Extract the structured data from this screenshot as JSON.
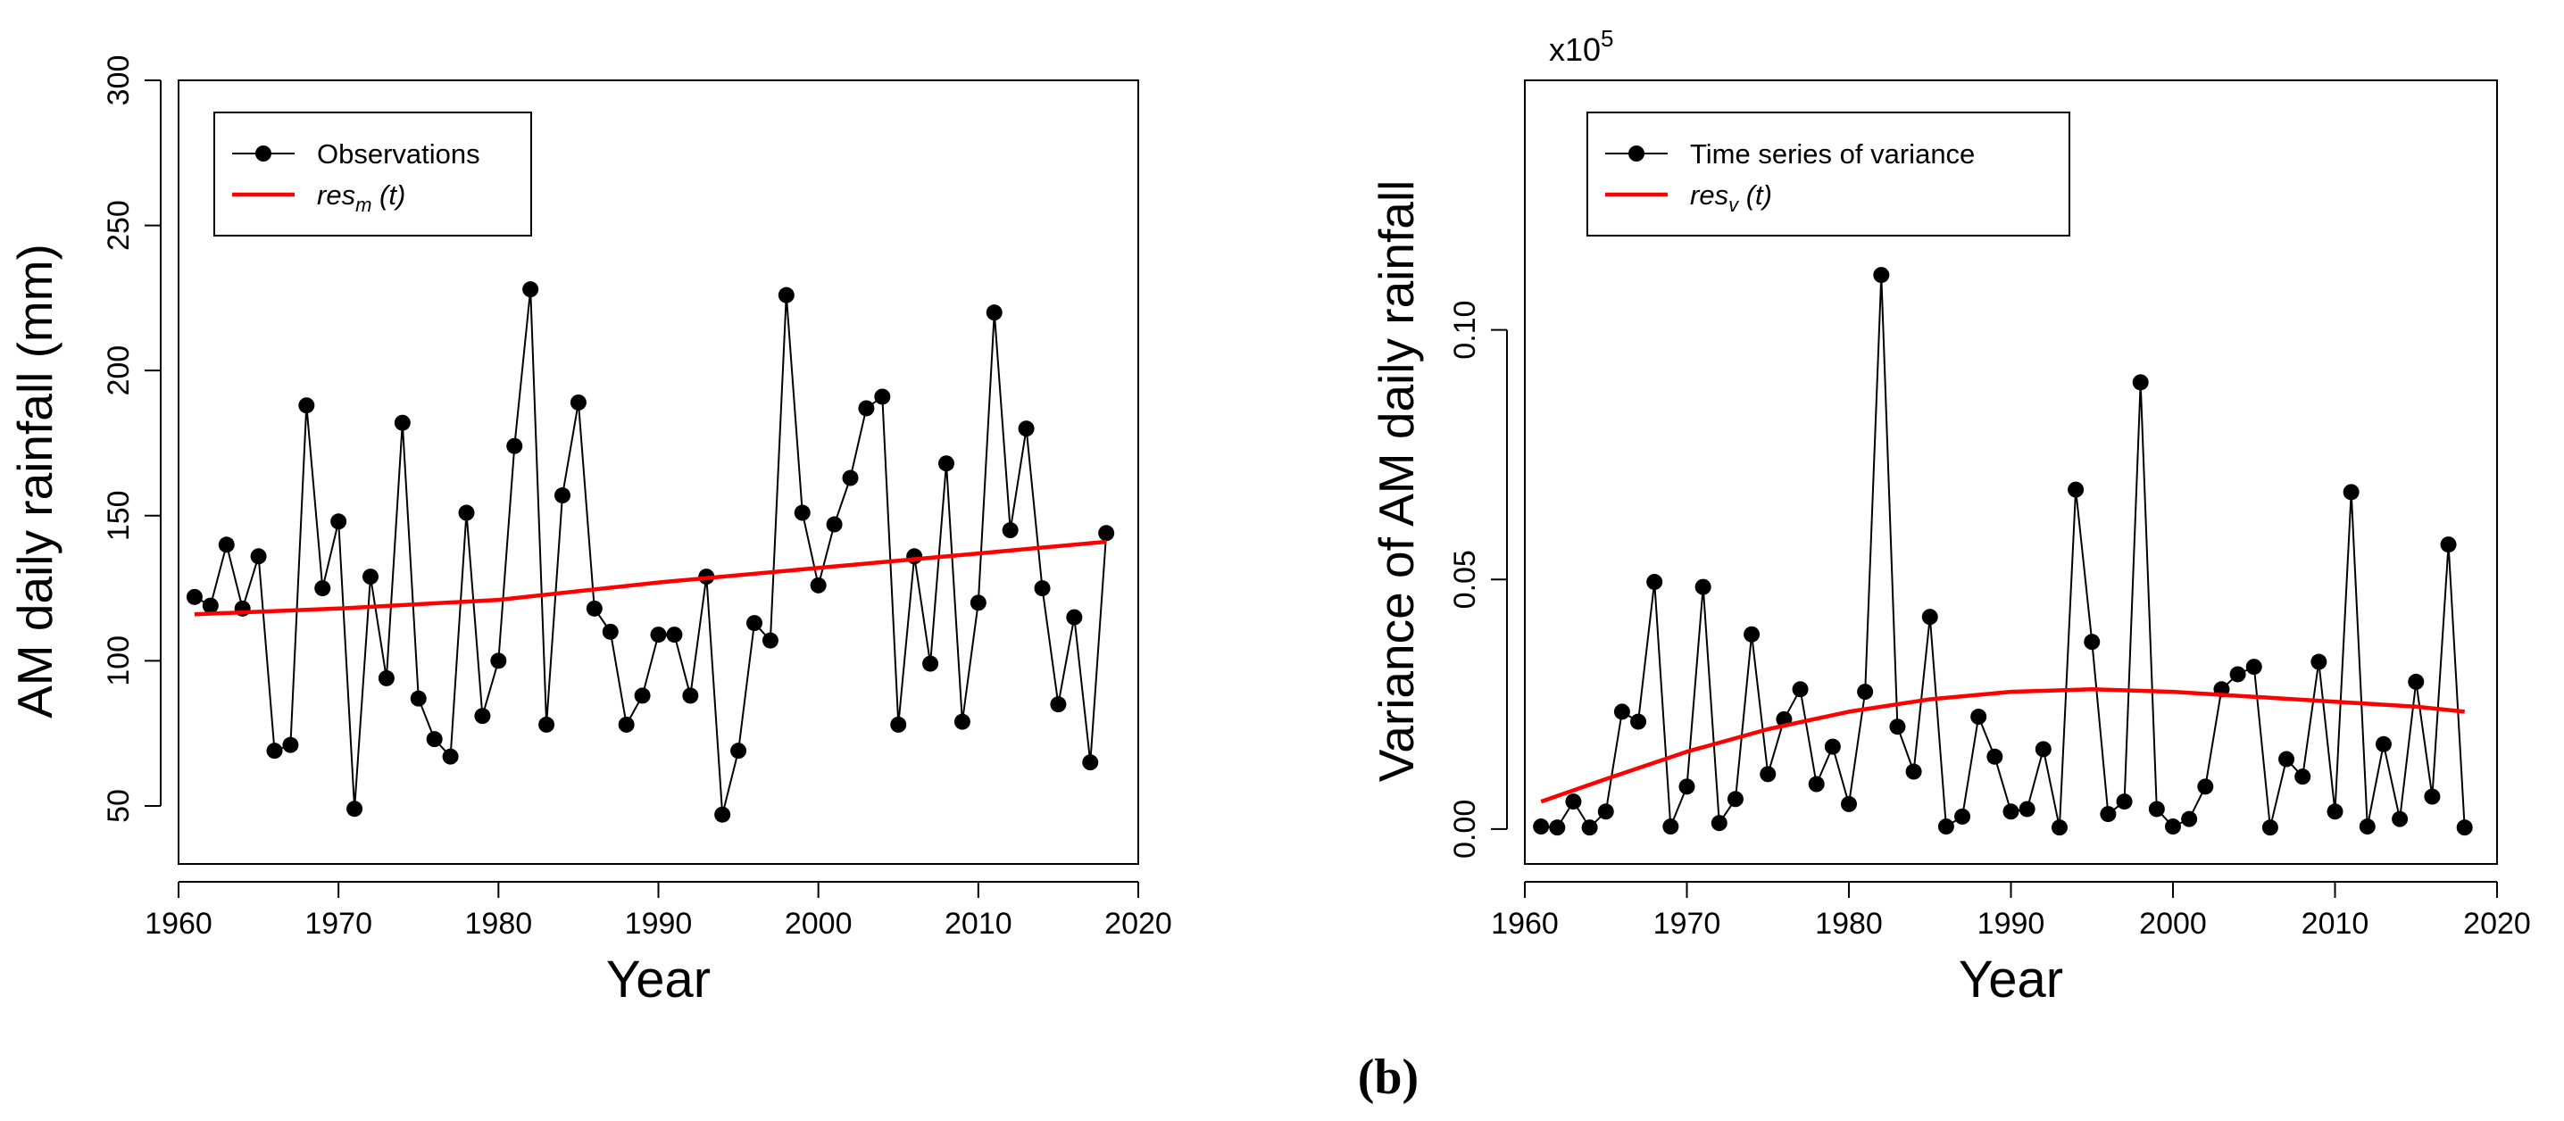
{
  "chart_data": [
    {
      "type": "line",
      "title": "",
      "xlabel": "Year",
      "ylabel": "AM daily rainfall (mm)",
      "xlim": [
        1960,
        2020
      ],
      "ylim": [
        30,
        300
      ],
      "xticks": [
        1960,
        1970,
        1980,
        1990,
        2000,
        2010,
        2020
      ],
      "yticks": [
        50,
        100,
        150,
        200,
        250,
        300
      ],
      "tick_labels_x": [
        "1960",
        "1970",
        "1980",
        "1990",
        "2000",
        "2010",
        "2020"
      ],
      "tick_labels_y": [
        "50",
        "100",
        "150",
        "200",
        "250",
        "300"
      ],
      "legend": {
        "position": "top-left",
        "entries": [
          {
            "label": "Observations",
            "style": "line-points",
            "color": "#000000"
          },
          {
            "label_base": "res",
            "label_sub": "m",
            "label_tail": " (t)",
            "style": "line",
            "color": "#ff0000"
          }
        ]
      },
      "series": [
        {
          "name": "Observations",
          "color": "#000000",
          "markers": true,
          "x": [
            1961,
            1962,
            1963,
            1964,
            1965,
            1966,
            1967,
            1968,
            1969,
            1970,
            1971,
            1972,
            1973,
            1974,
            1975,
            1976,
            1977,
            1978,
            1979,
            1980,
            1981,
            1982,
            1983,
            1984,
            1985,
            1986,
            1987,
            1988,
            1989,
            1990,
            1991,
            1992,
            1993,
            1994,
            1995,
            1996,
            1997,
            1998,
            1999,
            2000,
            2001,
            2002,
            2003,
            2004,
            2005,
            2006,
            2007,
            2008,
            2009,
            2010,
            2011,
            2012,
            2013,
            2014,
            2015,
            2016,
            2017,
            2018
          ],
          "y": [
            122,
            119,
            140,
            118,
            136,
            69,
            71,
            188,
            125,
            148,
            49,
            129,
            94,
            182,
            87,
            73,
            67,
            151,
            81,
            100,
            174,
            228,
            78,
            157,
            189,
            118,
            110,
            78,
            88,
            109,
            109,
            88,
            129,
            47,
            69,
            113,
            107,
            226,
            151,
            126,
            147,
            163,
            187,
            191,
            78,
            136,
            99,
            168,
            79,
            120,
            220,
            145,
            180,
            125,
            85,
            115,
            65,
            144
          ]
        },
        {
          "name": "res_m (t)",
          "color": "#ff0000",
          "markers": false,
          "x": [
            1961,
            1970,
            1980,
            1990,
            2000,
            2010,
            2018
          ],
          "y": [
            116,
            118,
            121,
            127,
            132,
            137,
            141
          ]
        }
      ]
    },
    {
      "type": "line",
      "title": "",
      "xlabel": "Year",
      "ylabel": "Variance of AM daily rainfall",
      "scale_label": "x10",
      "scale_exp": "5",
      "xlim": [
        1960,
        2020
      ],
      "ylim": [
        -0.007,
        0.15
      ],
      "xticks": [
        1960,
        1970,
        1980,
        1990,
        2000,
        2010,
        2020
      ],
      "yticks": [
        0.0,
        0.05,
        0.1
      ],
      "tick_labels_x": [
        "1960",
        "1970",
        "1980",
        "1990",
        "2000",
        "2010",
        "2020"
      ],
      "tick_labels_y": [
        "0.00",
        "0.05",
        "0.10"
      ],
      "legend": {
        "position": "top-left",
        "entries": [
          {
            "label": "Time series of variance",
            "style": "line-points",
            "color": "#000000"
          },
          {
            "label_base": "res",
            "label_sub": "v",
            "label_tail": " (t)",
            "style": "line",
            "color": "#ff0000"
          }
        ]
      },
      "series": [
        {
          "name": "Time series of variance",
          "color": "#000000",
          "markers": true,
          "x": [
            1961,
            1962,
            1963,
            1964,
            1965,
            1966,
            1967,
            1968,
            1969,
            1970,
            1971,
            1972,
            1973,
            1974,
            1975,
            1976,
            1977,
            1978,
            1979,
            1980,
            1981,
            1982,
            1983,
            1984,
            1985,
            1986,
            1987,
            1988,
            1989,
            1990,
            1991,
            1992,
            1993,
            1994,
            1995,
            1996,
            1997,
            1998,
            1999,
            2000,
            2001,
            2002,
            2003,
            2004,
            2005,
            2006,
            2007,
            2008,
            2009,
            2010,
            2011,
            2012,
            2013,
            2014,
            2015,
            2016,
            2017,
            2018
          ],
          "y": [
            0.0005,
            0.0003,
            0.0055,
            0.0003,
            0.0035,
            0.0235,
            0.0215,
            0.0495,
            0.0005,
            0.0085,
            0.0485,
            0.0012,
            0.006,
            0.039,
            0.011,
            0.022,
            0.028,
            0.009,
            0.0165,
            0.005,
            0.0275,
            0.111,
            0.0205,
            0.0115,
            0.0425,
            0.0005,
            0.0025,
            0.0225,
            0.0145,
            0.0035,
            0.004,
            0.016,
            0.0003,
            0.068,
            0.0375,
            0.003,
            0.0055,
            0.0895,
            0.004,
            0.0005,
            0.002,
            0.0085,
            0.028,
            0.031,
            0.0325,
            0.0003,
            0.014,
            0.0105,
            0.0335,
            0.0035,
            0.0675,
            0.0005,
            0.017,
            0.002,
            0.0295,
            0.0065,
            0.057,
            0.0003
          ]
        },
        {
          "name": "res_v (t)",
          "color": "#ff0000",
          "markers": false,
          "x": [
            1961,
            1965,
            1970,
            1975,
            1980,
            1985,
            1990,
            1995,
            2000,
            2005,
            2010,
            2015,
            2018
          ],
          "y": [
            0.0055,
            0.01,
            0.0155,
            0.02,
            0.0235,
            0.026,
            0.0275,
            0.028,
            0.0275,
            0.0265,
            0.0255,
            0.0245,
            0.0235
          ]
        }
      ]
    }
  ],
  "figure_caption": "(b)"
}
